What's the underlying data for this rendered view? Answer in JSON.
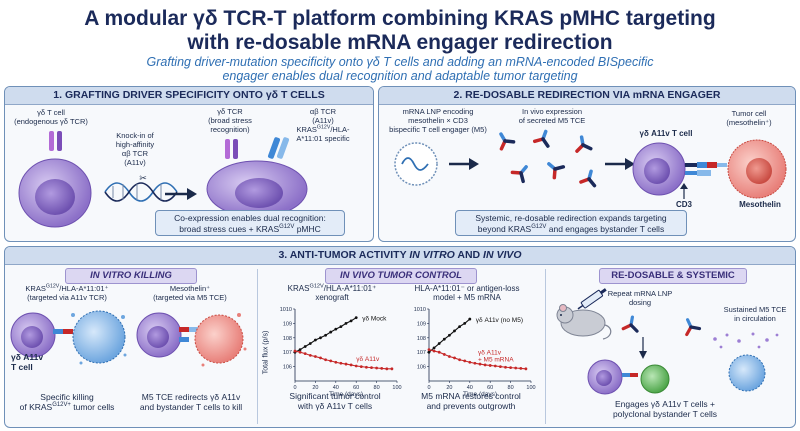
{
  "header": {
    "title_line1": "A modular γδ TCR-T platform combining KRAS pMHC targeting",
    "title_line2": "with re-dosable mRNA engager redirection",
    "subtitle_line1": "Grafting driver-mutation specificity onto γδ T cells and adding an mRNA-encoded BISpecific",
    "subtitle_line2": "engager enables dual recognition and adaptable tumor targeting"
  },
  "panel1": {
    "title": "1. GRAFTING DRIVER SPECIFICITY ONTO γδ T CELLS",
    "cell_label_1": "γδ T cell",
    "cell_label_2": "(endogenous γδ TCR)",
    "knockin_1": "Knock-in of",
    "knockin_2": "high-affinity",
    "knockin_3": "αβ TCR",
    "knockin_4": "(A11v)",
    "gd_tcr_1": "γδ TCR",
    "gd_tcr_2": "(broad stress",
    "gd_tcr_3": "recognition)",
    "ab_tcr_1": "αβ TCR",
    "ab_tcr_2": "(A11v)",
    "ab_tcr_3a": "KRAS",
    "ab_tcr_3sup": "G12V",
    "ab_tcr_3b": "/HLA-",
    "ab_tcr_4": "A*11:01 specific",
    "callout_1": "Co-expression enables dual recognition:",
    "callout_2a": "broad stress cues + KRAS",
    "callout_2sup": "G12V",
    "callout_2b": " pMHC"
  },
  "panel2": {
    "title": "2. RE-DOSABLE REDIRECTION VIA mRNA ENGAGER",
    "lnp_1": "mRNA LNP encoding",
    "lnp_2": "mesothelin × CD3",
    "lnp_3": "bispecific T cell engager (M5)",
    "expr_1": "In vivo expression",
    "expr_2": "of secreted M5 TCE",
    "tcell": "γδ A11v T cell",
    "tumor_1": "Tumor cell",
    "tumor_2": "(mesothelin⁺)",
    "cd3": "CD3",
    "mesothelin": "Mesothelin",
    "callout_1": "Systemic, re-dosable redirection expands targeting",
    "callout_2a": "beyond KRAS",
    "callout_2sup": "G12V",
    "callout_2b": " and engages bystander T cells"
  },
  "panel3": {
    "title_a": "3. ANTI-TUMOR ACTIVITY ",
    "title_b": "IN VITRO",
    "title_c": " AND ",
    "title_d": "IN VIVO",
    "invitro": {
      "head": "IN VITRO KILLING",
      "t1_1a": "KRAS",
      "t1_1sup": "G12V",
      "t1_1b": "/HLA-A*11:01⁺",
      "t1_2": "(targeted via A11v TCR)",
      "t2_1": "Mesothelin⁺",
      "t2_2": "(targeted via M5 TCE)",
      "cell_1": "γδ A11v",
      "cell_2": "T cell",
      "cap1_1": "Specific killing",
      "cap1_2a": "of KRAS",
      "cap1_2sup": "G12V+",
      "cap1_2b": " tumor cells",
      "cap2_1": "M5 TCE redirects γδ A11v",
      "cap2_2": "and bystander T cells to kill"
    },
    "invivo": {
      "head": "IN VIVO TUMOR CONTROL",
      "m1_1a": "KRAS",
      "m1_1sup": "G12V",
      "m1_1b": "/HLA-A*11:01⁺",
      "m1_2": "xenograft",
      "m2_1": "HLA-A*11:01⁻ or antigen-loss",
      "m2_2": "model + M5 mRNA",
      "ylabel": "Total flux (p/s)",
      "xlabel": "Time (days)",
      "cap1_1": "Significant tumor control",
      "cap1_2": "with γδ A11v T cells",
      "cap2_1": "M5 mRNA restores control",
      "cap2_2": "and prevents outgrowth"
    },
    "redose": {
      "head": "RE-DOSABLE & SYSTEMIC",
      "repeat_1": "Repeat mRNA LNP",
      "repeat_2": "dosing",
      "sustained_1": "Sustained M5 TCE",
      "sustained_2": "in circulation",
      "cap_1": "Engages γδ A11v T cells +",
      "cap_2": "polyclonal bystander T cells"
    }
  },
  "colors": {
    "navy": "#1b2a5a",
    "accent_blue": "#2f6fb3",
    "mock_series": "#111111",
    "treated_series": "#c62828",
    "tcell": "#8c70c8",
    "tumor": "#e8807a"
  },
  "chart_data": [
    {
      "type": "line",
      "title": "",
      "xlabel": "Time (days)",
      "ylabel": "Total flux (p/s)",
      "y_scale": "log",
      "ylim": [
        100000,
        10000000000
      ],
      "xlim": [
        0,
        100
      ],
      "x_ticks": [
        0,
        20,
        40,
        60,
        80,
        100
      ],
      "y_ticks": [
        "10^6",
        "10^7",
        "10^8",
        "10^9",
        "10^10"
      ],
      "series": [
        {
          "name": "γδ Mock",
          "x": [
            0,
            5,
            10,
            15,
            20,
            25,
            30,
            35,
            40,
            45,
            50,
            55,
            60
          ],
          "y": [
            10000000,
            15000000,
            25000000,
            40000000,
            70000000,
            100000000,
            150000000,
            250000000,
            400000000,
            600000000,
            1000000000,
            1500000000,
            2500000000
          ]
        },
        {
          "name": "γδ A11v",
          "x": [
            0,
            5,
            10,
            15,
            20,
            25,
            30,
            35,
            40,
            45,
            50,
            55,
            60,
            65,
            70,
            75,
            80,
            85,
            90,
            95
          ],
          "y": [
            12000000,
            10000000,
            8000000,
            6000000,
            5000000,
            4000000,
            3000000,
            2500000,
            2000000,
            1700000,
            1500000,
            1300000,
            1100000,
            1000000,
            900000,
            850000,
            800000,
            750000,
            700000,
            700000
          ]
        }
      ]
    },
    {
      "type": "line",
      "title": "",
      "xlabel": "Time (days)",
      "ylabel": "Total flux (p/s)",
      "y_scale": "log",
      "ylim": [
        100000,
        10000000000
      ],
      "xlim": [
        0,
        100
      ],
      "x_ticks": [
        0,
        20,
        40,
        60,
        80,
        100
      ],
      "y_ticks": [
        "10^6",
        "10^7",
        "10^8",
        "10^9",
        "10^10"
      ],
      "series": [
        {
          "name": "γδ A11v (no M5)",
          "x": [
            0,
            5,
            10,
            15,
            20,
            25,
            30,
            35,
            40
          ],
          "y": [
            10000000,
            20000000,
            40000000,
            80000000,
            150000000,
            300000000,
            600000000,
            1000000000,
            2000000000
          ]
        },
        {
          "name": "γδ A11v + M5 mRNA",
          "x": [
            0,
            5,
            10,
            15,
            20,
            25,
            30,
            35,
            40,
            45,
            50,
            55,
            60,
            65,
            70,
            75,
            80,
            85,
            90,
            95
          ],
          "y": [
            15000000,
            12000000,
            10000000,
            7000000,
            5000000,
            4000000,
            3000000,
            2500000,
            2000000,
            1700000,
            1500000,
            1300000,
            1200000,
            1100000,
            1000000,
            900000,
            850000,
            800000,
            750000,
            700000
          ]
        }
      ]
    }
  ]
}
